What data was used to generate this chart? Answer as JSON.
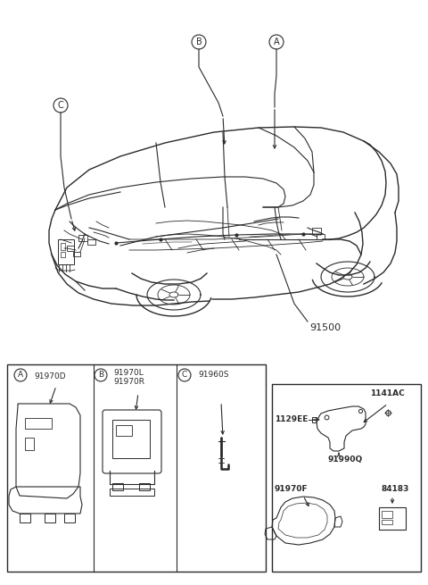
{
  "bg_color": "#ffffff",
  "line_color": "#2a2a2a",
  "fig_width": 4.8,
  "fig_height": 6.55,
  "dpi": 100,
  "labels": {
    "main_part": "91500",
    "circle_A": "A",
    "circle_B": "B",
    "circle_C": "C",
    "part_A_label": "91970D",
    "part_B_label1": "91970L",
    "part_B_label2": "91970R",
    "part_C_label": "91960S",
    "part_1141AC": "1141AC",
    "part_1129EE": "1129EE",
    "part_91990Q": "91990Q",
    "part_91970F": "91970F",
    "part_84183": "84183"
  }
}
